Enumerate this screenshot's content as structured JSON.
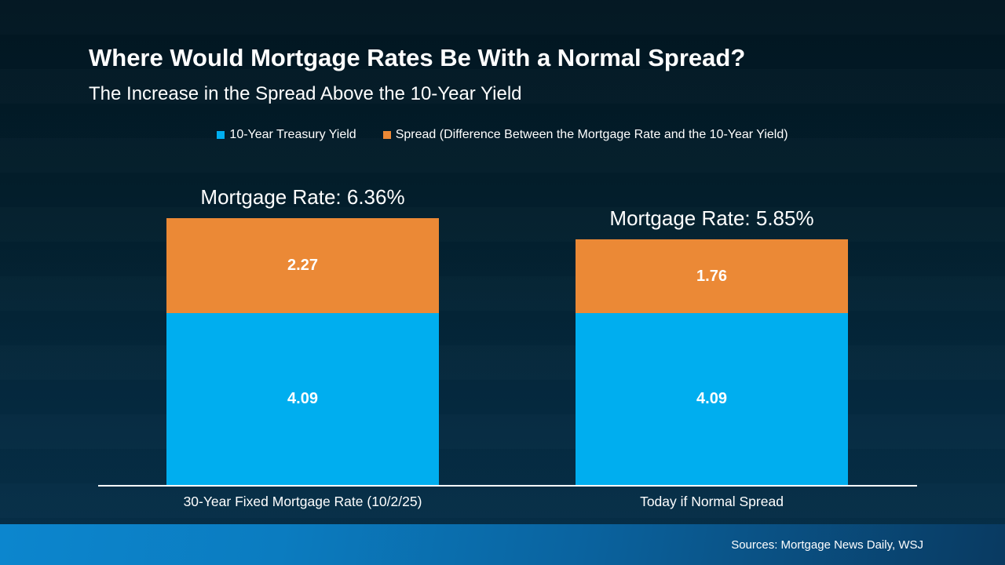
{
  "slide": {
    "title": "Where Would Mortgage Rates Be With a Normal Spread?",
    "subtitle": "The Increase in the Spread Above the 10-Year Yield",
    "footer": {
      "sources": "Sources: Mortgage News Daily, WSJ"
    }
  },
  "colors": {
    "treasury_blue": "#00AEEF",
    "spread_orange": "#EB8936",
    "background_top": "#021621",
    "background_bottom": "#06304A",
    "footer_gradient_left": "#0C86CE",
    "footer_gradient_right": "#093A61",
    "axis_line": "#FFFFFF",
    "text": "#FFFFFF"
  },
  "chart_data": {
    "type": "bar",
    "subtype": "stacked",
    "title": "Where Would Mortgage Rates Be With a Normal Spread?",
    "subtitle": "The Increase in the Spread Above the 10-Year Yield",
    "legend_position": "top",
    "grid": false,
    "ylim": [
      0,
      7
    ],
    "categories": [
      "30-Year Fixed Mortgage Rate (10/2/25)",
      "Today if Normal Spread"
    ],
    "series": [
      {
        "name": "10-Year Treasury Yield",
        "color": "#00AEEF",
        "values": [
          4.09,
          4.09
        ]
      },
      {
        "name": "Spread (Difference Between the Mortgage Rate and the 10-Year Yield)",
        "color": "#EB8936",
        "values": [
          2.27,
          1.76
        ]
      }
    ],
    "bar_totals": [
      {
        "label": "Mortgage Rate: 6.36%",
        "value": 6.36
      },
      {
        "label": "Mortgage Rate: 5.85%",
        "value": 5.85
      }
    ]
  }
}
